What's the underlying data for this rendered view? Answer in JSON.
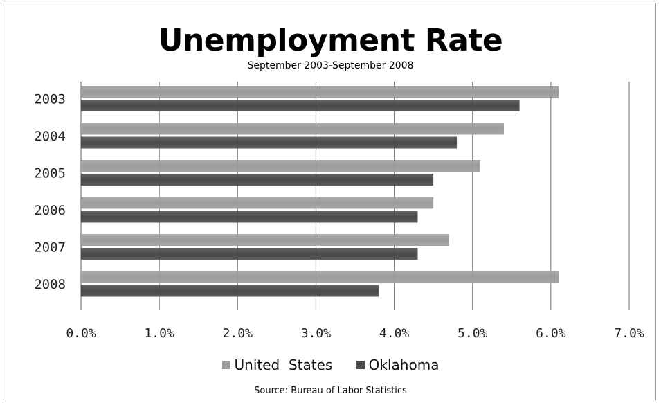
{
  "chart_data": {
    "type": "bar",
    "orientation": "horizontal",
    "title": "Unemployment Rate",
    "subtitle": "September 2003-September 2008",
    "source": "Source: Bureau of Labor Statistics",
    "categories": [
      "2003",
      "2004",
      "2005",
      "2006",
      "2007",
      "2008"
    ],
    "series": [
      {
        "name": "United  States",
        "color": "#9c9c9c",
        "values": [
          6.1,
          5.4,
          5.1,
          4.5,
          4.7,
          6.1
        ]
      },
      {
        "name": "Oklahoma",
        "color": "#4a4a4a",
        "values": [
          5.6,
          4.8,
          4.5,
          4.3,
          4.3,
          3.8
        ]
      }
    ],
    "xlim": [
      0,
      7
    ],
    "xticks": [
      "0.0%",
      "1.0%",
      "2.0%",
      "3.0%",
      "4.0%",
      "5.0%",
      "6.0%",
      "7.0%"
    ],
    "grid": true,
    "legend_position": "bottom"
  }
}
